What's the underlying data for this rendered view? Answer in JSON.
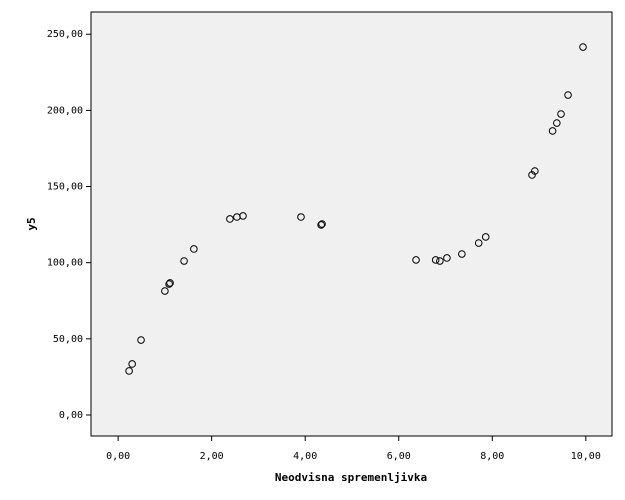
{
  "chart_data": {
    "type": "scatter",
    "x_label": "Neodvisna spremenljivka",
    "y_label": "y5",
    "color": "#000000",
    "x": [
      0.235,
      0.3,
      0.49,
      1.0,
      1.09,
      1.11,
      1.41,
      1.62,
      2.39,
      2.54,
      2.67,
      3.91,
      4.34,
      4.36,
      6.37,
      6.79,
      6.88,
      7.03,
      7.35,
      7.71,
      7.86,
      8.85,
      8.91,
      9.29,
      9.38,
      9.47,
      9.62,
      9.94
    ],
    "values": [
      28.9,
      33.5,
      49.2,
      81.4,
      86.0,
      86.7,
      101.1,
      109.0,
      128.7,
      130.0,
      130.7,
      130.0,
      124.8,
      125.4,
      101.8,
      101.8,
      101.1,
      103.1,
      105.7,
      112.9,
      116.9,
      157.6,
      160.2,
      186.5,
      191.7,
      197.6,
      210.1,
      241.6
    ],
    "xlim": [
      -0.58,
      10.56
    ],
    "ylim": [
      -13.8,
      264.6
    ],
    "xticks": [
      {
        "value": 0,
        "label": "0,00"
      },
      {
        "value": 2,
        "label": "2,00"
      },
      {
        "value": 4,
        "label": "4,00"
      },
      {
        "value": 6,
        "label": "6,00"
      },
      {
        "value": 8,
        "label": "8,00"
      },
      {
        "value": 10,
        "label": "10,00"
      }
    ],
    "yticks": [
      {
        "value": 0,
        "label": "0,00"
      },
      {
        "value": 50,
        "label": "50,00"
      },
      {
        "value": 100,
        "label": "100,00"
      },
      {
        "value": 150,
        "label": "150,00"
      },
      {
        "value": 200,
        "label": "200,00"
      },
      {
        "value": 250,
        "label": "250,00"
      }
    ]
  }
}
